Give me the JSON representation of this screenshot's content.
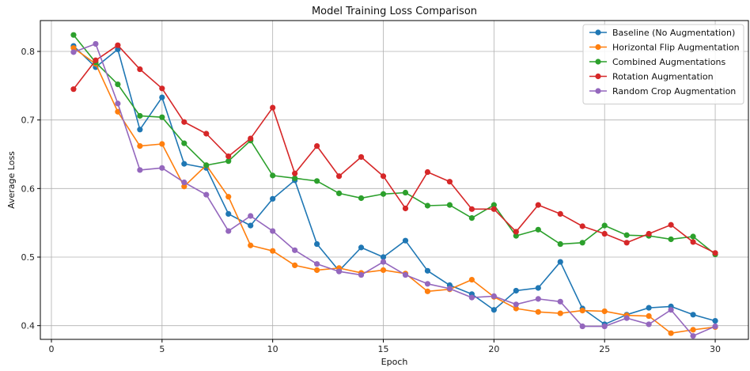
{
  "chart_data": {
    "type": "line",
    "title": "Model Training Loss Comparison",
    "xlabel": "Epoch",
    "ylabel": "Average Loss",
    "xlim": [
      -0.5,
      31.5
    ],
    "ylim": [
      0.38,
      0.845
    ],
    "xticks": [
      0,
      5,
      10,
      15,
      20,
      25,
      30
    ],
    "yticks": [
      0.4,
      0.5,
      0.6,
      0.7,
      0.8
    ],
    "ytick_labels": [
      "0.4",
      "0.5",
      "0.6",
      "0.7",
      "0.8"
    ],
    "grid": true,
    "legend_position": "top-right",
    "x": [
      1,
      2,
      3,
      4,
      5,
      6,
      7,
      8,
      9,
      10,
      11,
      12,
      13,
      14,
      15,
      16,
      17,
      18,
      19,
      20,
      21,
      22,
      23,
      24,
      25,
      26,
      27,
      28,
      29,
      30
    ],
    "series": [
      {
        "name": "Baseline (No Augmentation)",
        "color": "#1f77b4",
        "values": [
          0.808,
          0.777,
          0.803,
          0.686,
          0.733,
          0.636,
          0.63,
          0.563,
          0.546,
          0.585,
          0.612,
          0.519,
          0.48,
          0.514,
          0.5,
          0.524,
          0.48,
          0.459,
          0.446,
          0.423,
          0.451,
          0.455,
          0.493,
          0.425,
          0.402,
          0.416,
          0.426,
          0.428,
          0.416,
          0.407
        ]
      },
      {
        "name": "Horizontal Flip Augmentation",
        "color": "#ff7f0e",
        "values": [
          0.805,
          0.782,
          0.712,
          0.662,
          0.665,
          0.603,
          0.634,
          0.588,
          0.517,
          0.509,
          0.488,
          0.481,
          0.484,
          0.477,
          0.481,
          0.476,
          0.45,
          0.453,
          0.467,
          0.442,
          0.425,
          0.42,
          0.418,
          0.422,
          0.421,
          0.415,
          0.414,
          0.389,
          0.394,
          0.398
        ]
      },
      {
        "name": "Combined Augmentations",
        "color": "#2ca02c",
        "values": [
          0.824,
          0.784,
          0.752,
          0.706,
          0.704,
          0.666,
          0.634,
          0.64,
          0.67,
          0.619,
          0.615,
          0.611,
          0.593,
          0.586,
          0.592,
          0.594,
          0.575,
          0.576,
          0.557,
          0.576,
          0.531,
          0.54,
          0.519,
          0.521,
          0.546,
          0.532,
          0.531,
          0.526,
          0.53,
          0.504
        ]
      },
      {
        "name": "Rotation Augmentation",
        "color": "#d62728",
        "values": [
          0.745,
          0.787,
          0.809,
          0.774,
          0.746,
          0.697,
          0.68,
          0.647,
          0.673,
          0.718,
          0.622,
          0.662,
          0.618,
          0.646,
          0.618,
          0.571,
          0.624,
          0.61,
          0.57,
          0.57,
          0.537,
          0.576,
          0.563,
          0.545,
          0.534,
          0.521,
          0.534,
          0.547,
          0.522,
          0.506
        ]
      },
      {
        "name": "Random Crop Augmentation",
        "color": "#9467bd",
        "values": [
          0.799,
          0.811,
          0.724,
          0.627,
          0.63,
          0.609,
          0.591,
          0.538,
          0.56,
          0.538,
          0.51,
          0.49,
          0.479,
          0.474,
          0.493,
          0.474,
          0.461,
          0.454,
          0.441,
          0.443,
          0.431,
          0.439,
          0.435,
          0.399,
          0.399,
          0.411,
          0.402,
          0.423,
          0.385,
          0.399
        ]
      }
    ]
  }
}
